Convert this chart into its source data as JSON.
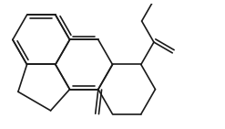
{
  "background": "#ffffff",
  "line_color": "#1a1a1a",
  "line_width": 1.2,
  "figsize": [
    2.47,
    1.41
  ],
  "dpi": 100,
  "xlim": [
    0,
    10
  ],
  "ylim": [
    0,
    5.7
  ]
}
